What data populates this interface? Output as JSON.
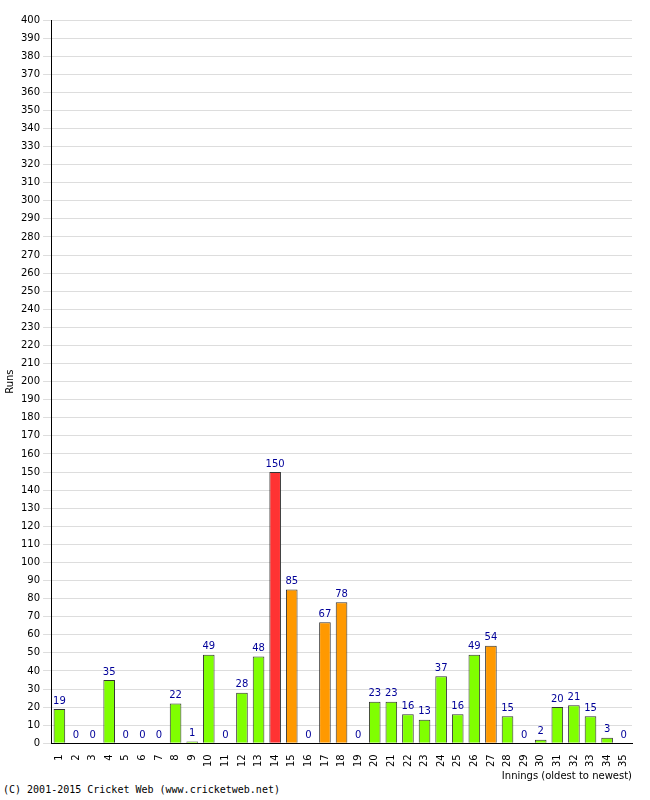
{
  "chart_data": {
    "type": "bar",
    "x_label": "Innings (oldest to newest)",
    "y_label": "Runs",
    "annotation": "(C) 2001-2015 Cricket Web (www.cricketweb.net)",
    "categories": [
      "1",
      "2",
      "3",
      "4",
      "5",
      "6",
      "7",
      "8",
      "9",
      "10",
      "11",
      "12",
      "13",
      "14",
      "15",
      "16",
      "17",
      "18",
      "19",
      "20",
      "21",
      "22",
      "23",
      "24",
      "25",
      "26",
      "27",
      "28",
      "29",
      "30",
      "31",
      "32",
      "33",
      "34",
      "35"
    ],
    "values": [
      19,
      0,
      0,
      35,
      0,
      0,
      0,
      22,
      1,
      49,
      0,
      28,
      48,
      150,
      85,
      0,
      67,
      78,
      0,
      23,
      23,
      16,
      13,
      37,
      16,
      49,
      54,
      15,
      0,
      2,
      20,
      21,
      15,
      3,
      0
    ],
    "colors": [
      "#80ff00",
      "#80ff00",
      "#80ff00",
      "#80ff00",
      "#80ff00",
      "#80ff00",
      "#80ff00",
      "#80ff00",
      "#80ff00",
      "#80ff00",
      "#80ff00",
      "#80ff00",
      "#80ff00",
      "#ff3333",
      "#ff9900",
      "#80ff00",
      "#ff9900",
      "#ff9900",
      "#80ff00",
      "#80ff00",
      "#80ff00",
      "#80ff00",
      "#80ff00",
      "#80ff00",
      "#80ff00",
      "#80ff00",
      "#ff9900",
      "#80ff00",
      "#80ff00",
      "#80ff00",
      "#80ff00",
      "#80ff00",
      "#80ff00",
      "#80ff00",
      "#80ff00"
    ],
    "ylim": [
      0,
      400
    ],
    "yticks": [
      0,
      10,
      20,
      30,
      40,
      50,
      60,
      70,
      80,
      90,
      100,
      110,
      120,
      130,
      140,
      150,
      160,
      170,
      180,
      190,
      200,
      210,
      220,
      230,
      240,
      250,
      260,
      270,
      280,
      290,
      300,
      310,
      320,
      330,
      340,
      350,
      360,
      370,
      380,
      390,
      400
    ],
    "grid": true,
    "data_labels": true
  }
}
